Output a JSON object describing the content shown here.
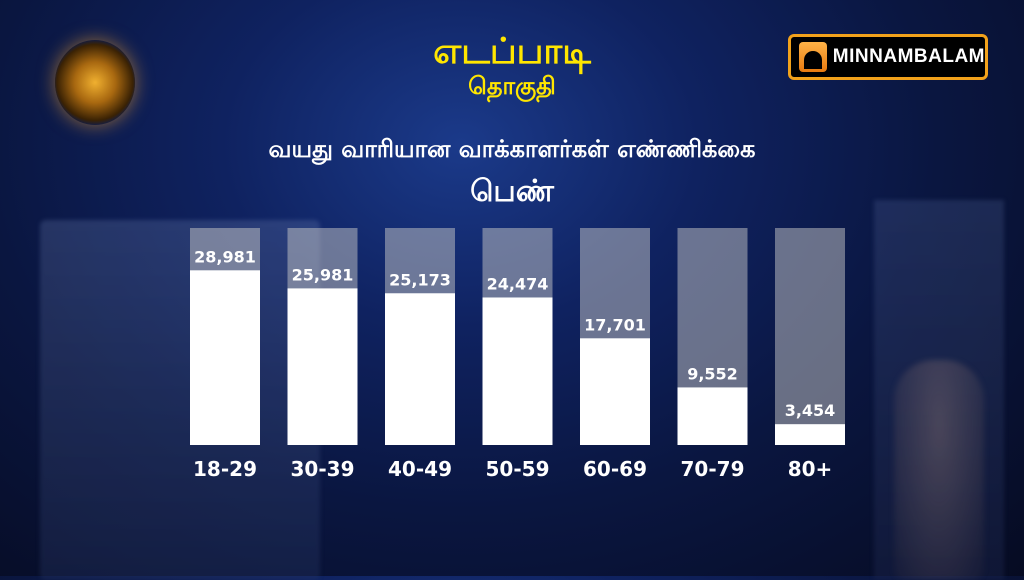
{
  "header": {
    "title": "எடப்பாடி",
    "subtitle": "தொகுதி",
    "heading": "வயது வாரியான வாக்காளர்கள் எண்ணிக்கை",
    "gender": "பெண்"
  },
  "logo": {
    "text": "MINNAMBALAM",
    "accent": "#f2a21b"
  },
  "colors": {
    "title": "#ffe600",
    "bar": "#ffffff",
    "track": "#c8c8c8"
  },
  "chart_data": {
    "type": "bar",
    "title": "வயது வாரியான வாக்காளர்கள் எண்ணிக்கை",
    "subtitle": "பெண்",
    "categories": [
      "18-29",
      "30-39",
      "40-49",
      "50-59",
      "60-69",
      "70-79",
      "80+"
    ],
    "values": [
      28981,
      25981,
      25173,
      24474,
      17701,
      9552,
      3454
    ],
    "value_labels": [
      "28,981",
      "25,981",
      "25,173",
      "24,474",
      "17,701",
      "9,552",
      "3,454"
    ],
    "ylim": [
      0,
      36000
    ],
    "grid": false,
    "legend": "none"
  }
}
